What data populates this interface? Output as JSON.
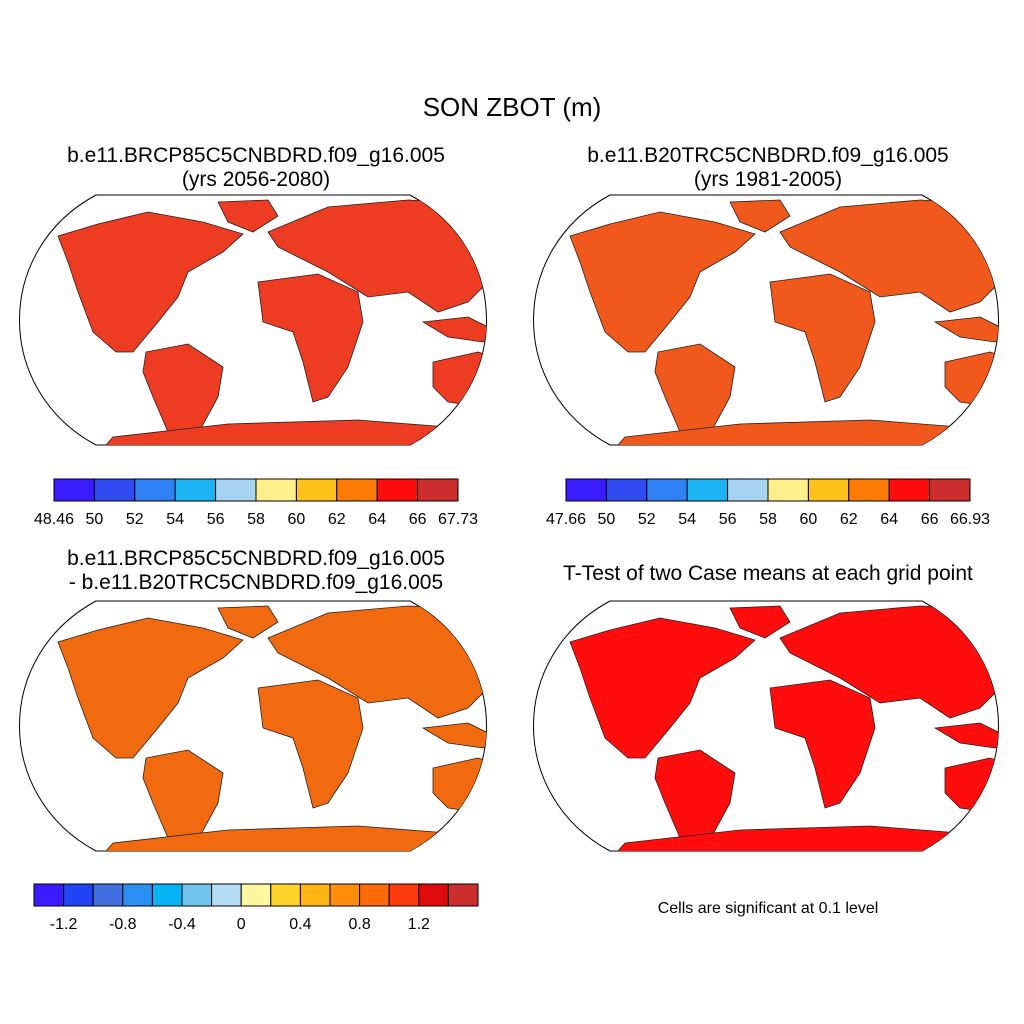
{
  "title": "SON ZBOT (m)",
  "panels": [
    {
      "id": "case1",
      "title_line1": "b.e11.BRCP85C5CNBDRD.f09_g16.005",
      "title_line2": "(yrs 2056-2080)",
      "land_fill": "#ee3c22",
      "colorbar": {
        "colors": [
          "#3b1bff",
          "#2f4bf1",
          "#2f7ff5",
          "#1db3f5",
          "#a7d3f0",
          "#fff08c",
          "#ffc21a",
          "#ff7b08",
          "#ff0d0d",
          "#cc2d2d"
        ],
        "labels": [
          "48.46",
          "50",
          "52",
          "54",
          "56",
          "58",
          "60",
          "62",
          "64",
          "66",
          "67.73"
        ]
      }
    },
    {
      "id": "case2",
      "title_line1": "b.e11.B20TRC5CNBDRD.f09_g16.005",
      "title_line2": "(yrs 1981-2005)",
      "land_fill": "#f0581c",
      "colorbar": {
        "colors": [
          "#3b1bff",
          "#2f4bf1",
          "#2f7ff5",
          "#1db3f5",
          "#a7d3f0",
          "#fff08c",
          "#ffc21a",
          "#ff7b08",
          "#ff0d0d",
          "#cc2d2d"
        ],
        "labels": [
          "47.66",
          "50",
          "52",
          "54",
          "56",
          "58",
          "60",
          "62",
          "64",
          "66",
          "66.93"
        ]
      }
    },
    {
      "id": "difference",
      "title_line1": "b.e11.BRCP85C5CNBDRD.f09_g16.005",
      "title_line2": "- b.e11.B20TRC5CNBDRD.f09_g16.005",
      "land_fill": "#f26a10",
      "colorbar": {
        "colors": [
          "#3b1bff",
          "#1f45f5",
          "#3f6ee0",
          "#2a8ff2",
          "#06b4f5",
          "#6fc5ee",
          "#b4dcf5",
          "#fff6a0",
          "#ffd42a",
          "#ffb412",
          "#ff8c0a",
          "#ff6a0a",
          "#ff3b0d",
          "#e00b0b",
          "#cc2d2d"
        ],
        "labels": [
          "-1.2",
          "-0.8",
          "-0.4",
          "0",
          "0.4",
          "0.8",
          "1.2"
        ]
      }
    },
    {
      "id": "ttest",
      "title_line1": "T-Test of two Case means at each grid point",
      "land_fill": "#ff0d0d",
      "note": "Cells are significant at 0.1 level"
    }
  ]
}
